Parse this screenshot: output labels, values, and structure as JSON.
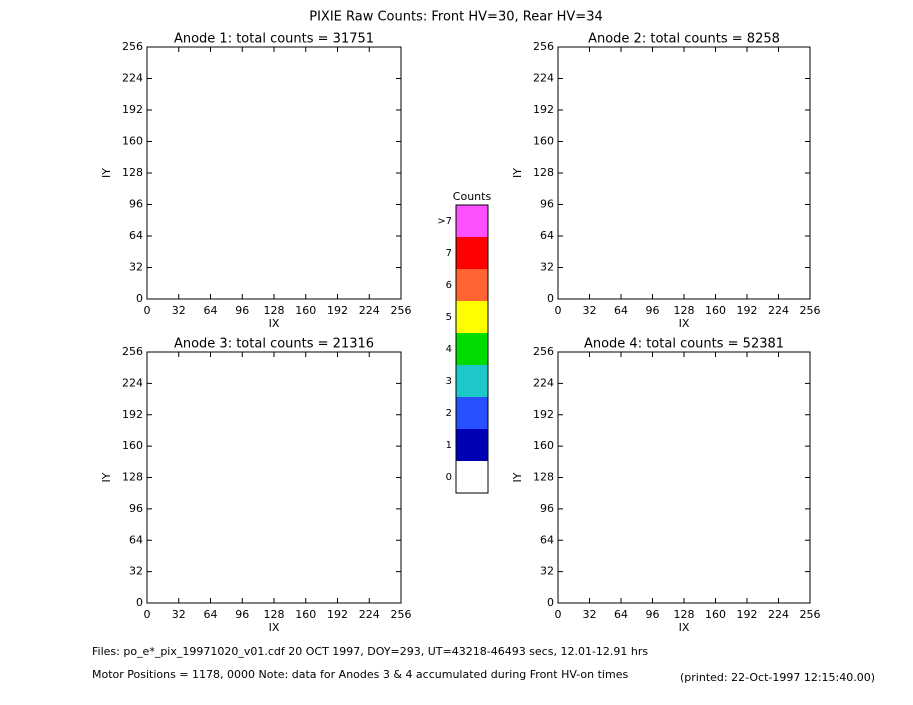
{
  "title": "PIXIE Raw Counts:  Front HV=30, Rear HV=34",
  "chart_data": [
    {
      "type": "heatmap",
      "title": "Anode 1: total counts = 31751",
      "xlabel": "IX",
      "ylabel": "IY",
      "xlim": [
        0,
        256
      ],
      "ylim": [
        0,
        256
      ],
      "xticks": [
        0,
        32,
        64,
        96,
        128,
        160,
        192,
        224,
        256
      ],
      "yticks": [
        0,
        32,
        64,
        96,
        128,
        160,
        192,
        224,
        256
      ]
    },
    {
      "type": "heatmap",
      "title": "Anode 2: total counts = 8258",
      "xlabel": "IX",
      "ylabel": "IY",
      "xlim": [
        0,
        256
      ],
      "ylim": [
        0,
        256
      ],
      "xticks": [
        0,
        32,
        64,
        96,
        128,
        160,
        192,
        224,
        256
      ],
      "yticks": [
        0,
        32,
        64,
        96,
        128,
        160,
        192,
        224,
        256
      ]
    },
    {
      "type": "heatmap",
      "title": "Anode 3: total counts = 21316",
      "xlabel": "IX",
      "ylabel": "IY",
      "xlim": [
        0,
        256
      ],
      "ylim": [
        0,
        256
      ],
      "xticks": [
        0,
        32,
        64,
        96,
        128,
        160,
        192,
        224,
        256
      ],
      "yticks": [
        0,
        32,
        64,
        96,
        128,
        160,
        192,
        224,
        256
      ]
    },
    {
      "type": "heatmap",
      "title": "Anode 4: total counts = 52381",
      "xlabel": "IX",
      "ylabel": "IY",
      "xlim": [
        0,
        256
      ],
      "ylim": [
        0,
        256
      ],
      "xticks": [
        0,
        32,
        64,
        96,
        128,
        160,
        192,
        224,
        256
      ],
      "yticks": [
        0,
        32,
        64,
        96,
        128,
        160,
        192,
        224,
        256
      ]
    }
  ],
  "colorbar": {
    "title": "Counts",
    "categories": [
      "0",
      "1",
      "2",
      "3",
      "4",
      "5",
      "6",
      "7",
      ">7"
    ],
    "colors": [
      "#ffffff",
      "#0000b4",
      "#2850ff",
      "#1ec8c8",
      "#00dc00",
      "#ffff00",
      "#ff6432",
      "#ff0000",
      "#ff50ff"
    ]
  },
  "footer": {
    "files": "Files: po_e*_pix_19971020_v01.cdf    20 OCT 1997, DOY=293, UT=43218-46493 secs, 12.01-12.91 hrs",
    "motor": "Motor Positions = 1178, 0000    Note: data for Anodes 3 & 4 accumulated during Front HV-on times",
    "printed": "(printed: 22-Oct-1997 12:15:40.00)"
  }
}
